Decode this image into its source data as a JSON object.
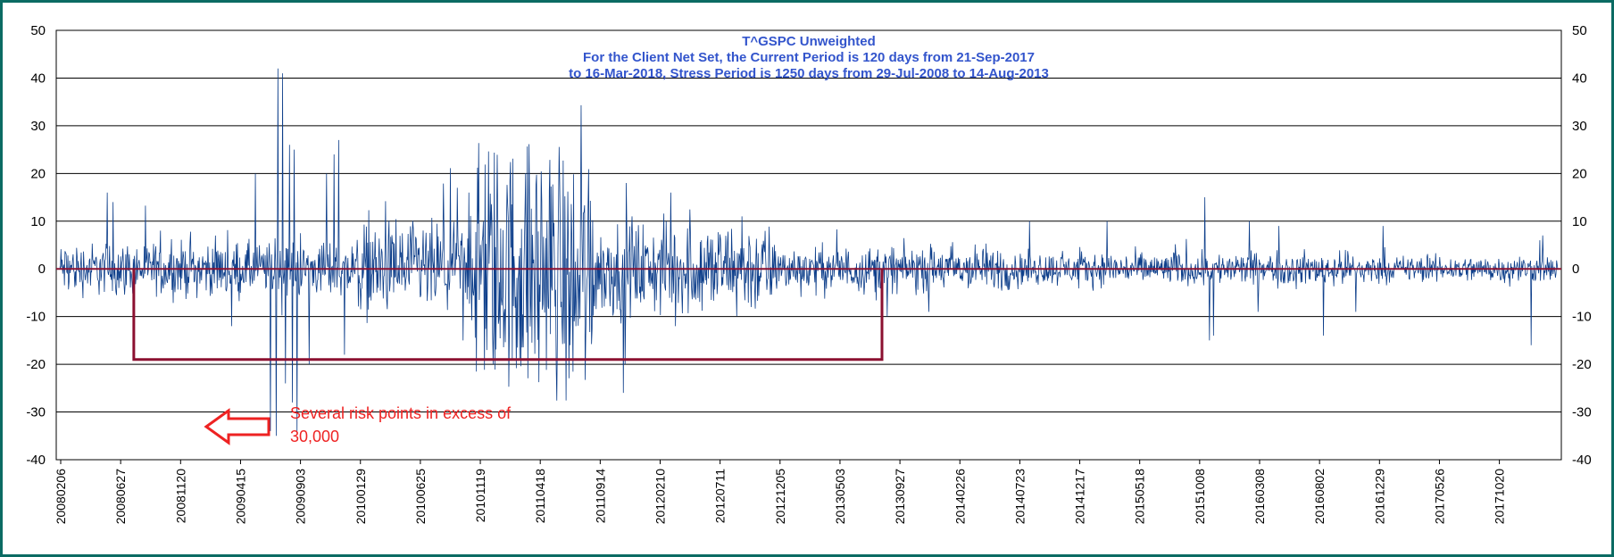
{
  "chart_data": {
    "type": "line",
    "title": {
      "line1": "T^GSPC      Unweighted",
      "line2": "For the Client Net Set, the Current Period is 120 days from 21-Sep-2017",
      "line3": "to 16-Mar-2018, Stress Period is 1250 days from 29-Jul-2008 to 14-Aug-2013"
    },
    "xlabel": "",
    "ylabel": "",
    "ylim": [
      -40,
      50
    ],
    "yticks": [
      50,
      40,
      30,
      20,
      10,
      0,
      -10,
      -20,
      -30,
      -40
    ],
    "xticks": [
      "20080206",
      "20080627",
      "20081120",
      "20090415",
      "20090903",
      "20100129",
      "20100625",
      "20101119",
      "20110418",
      "20110914",
      "20120210",
      "20120711",
      "20121205",
      "20130503",
      "20130927",
      "20140226",
      "20140723",
      "20141217",
      "20150518",
      "20151008",
      "20160308",
      "20160802",
      "20161229",
      "20170526",
      "20171020"
    ],
    "series_count": 2590,
    "grid": true,
    "bands": [
      {
        "from": 0,
        "to": 5,
        "amp": 8
      },
      {
        "from": 5,
        "to": 7,
        "amp": 14
      },
      {
        "from": 7,
        "to": 9,
        "amp": 38
      },
      {
        "from": 9,
        "to": 12,
        "amp": 14
      },
      {
        "from": 12,
        "to": 16,
        "amp": 7
      },
      {
        "from": 16,
        "to": 22,
        "amp": 5
      },
      {
        "from": 22,
        "to": 25,
        "amp": 4
      }
    ],
    "spikes": [
      {
        "x": 1.6,
        "y": 16
      },
      {
        "x": 1.8,
        "y": 14
      },
      {
        "x": 7.35,
        "y": 42
      },
      {
        "x": 7.5,
        "y": 41
      },
      {
        "x": 7.1,
        "y": -34
      },
      {
        "x": 7.3,
        "y": -35
      },
      {
        "x": 8.0,
        "y": -34
      },
      {
        "x": 7.85,
        "y": -28
      },
      {
        "x": 7.75,
        "y": 26
      },
      {
        "x": 7.9,
        "y": 25
      },
      {
        "x": 9.25,
        "y": 24
      },
      {
        "x": 9.4,
        "y": 27
      },
      {
        "x": 9.0,
        "y": 20
      },
      {
        "x": 7.6,
        "y": -24
      },
      {
        "x": 8.4,
        "y": -20
      },
      {
        "x": 9.6,
        "y": -18
      },
      {
        "x": 5.8,
        "y": -12
      },
      {
        "x": 6.6,
        "y": 20
      },
      {
        "x": 13.4,
        "y": 17
      },
      {
        "x": 13.6,
        "y": -15
      },
      {
        "x": 13.8,
        "y": 16
      },
      {
        "x": 17.2,
        "y": -16
      },
      {
        "x": 17.4,
        "y": -12
      },
      {
        "x": 17.6,
        "y": 12
      },
      {
        "x": 19.1,
        "y": 18
      },
      {
        "x": 19.0,
        "y": -26
      },
      {
        "x": 19.05,
        "y": -20
      },
      {
        "x": 19.3,
        "y": 11
      },
      {
        "x": 20.6,
        "y": 16
      },
      {
        "x": 20.75,
        "y": -12
      },
      {
        "x": 23.0,
        "y": 11
      },
      {
        "x": 27.9,
        "y": -10
      },
      {
        "x": 29.3,
        "y": -9
      },
      {
        "x": 32.7,
        "y": 10
      },
      {
        "x": 35.3,
        "y": 10
      },
      {
        "x": 38.6,
        "y": 15
      },
      {
        "x": 38.75,
        "y": -15
      },
      {
        "x": 38.9,
        "y": -14
      },
      {
        "x": 40.1,
        "y": 10
      },
      {
        "x": 40.4,
        "y": -9
      },
      {
        "x": 41.1,
        "y": 9
      },
      {
        "x": 42.6,
        "y": -14
      },
      {
        "x": 43.7,
        "y": -9
      },
      {
        "x": 44.6,
        "y": 9
      },
      {
        "x": 49.6,
        "y": -16
      },
      {
        "x": 49.9,
        "y": 6
      },
      {
        "x": 50.0,
        "y": 7
      }
    ],
    "stress_bracket": {
      "x_start": 20080729,
      "x_end": 20130814,
      "y": -19
    },
    "annotation": {
      "line1": "Several risk points in excess of",
      "line2": "30,000"
    },
    "colors": {
      "series": "#0d3e8a",
      "zero_line": "#8b1030",
      "bracket": "#8b1030",
      "title": "#3355cc",
      "annotation": "#ee2222",
      "frame": "#0b6b63"
    }
  }
}
